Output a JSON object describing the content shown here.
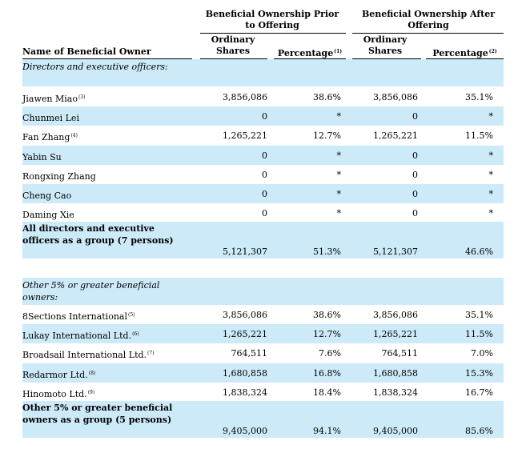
{
  "header": {
    "group_prior": "Beneficial Ownership Prior to Offering",
    "group_after": "Beneficial Ownership After Offering",
    "col_name": "Name of Beneficial Owner",
    "col_shares": "Ordinary Shares",
    "col_pct": "Percentage",
    "pct_prior_note": "(1)",
    "pct_after_note": "(2)"
  },
  "sections": {
    "directors": "Directors and executive officers:",
    "others": "Other 5% or greater beneficial owners:"
  },
  "directors": [
    {
      "name": "Jiawen Miao",
      "note": "(3)",
      "shares_prior": "3,856,086",
      "pct_prior": "38.6%",
      "shares_after": "3,856,086",
      "pct_after": "35.1%"
    },
    {
      "name": "Chunmei Lei",
      "note": "",
      "shares_prior": "0",
      "pct_prior": "*",
      "shares_after": "0",
      "pct_after": "*"
    },
    {
      "name": "Fan Zhang",
      "note": "(4)",
      "shares_prior": "1,265,221",
      "pct_prior": "12.7%",
      "shares_after": "1,265,221",
      "pct_after": "11.5%"
    },
    {
      "name": "Yabin Su",
      "note": "",
      "shares_prior": "0",
      "pct_prior": "*",
      "shares_after": "0",
      "pct_after": "*"
    },
    {
      "name": "Rongxing Zhang",
      "note": "",
      "shares_prior": "0",
      "pct_prior": "*",
      "shares_after": "0",
      "pct_after": "*"
    },
    {
      "name": "Cheng Cao",
      "note": "",
      "shares_prior": "0",
      "pct_prior": "*",
      "shares_after": "0",
      "pct_after": "*"
    },
    {
      "name": "Daming Xie",
      "note": "",
      "shares_prior": "0",
      "pct_prior": "*",
      "shares_after": "0",
      "pct_after": "*"
    }
  ],
  "directors_total": {
    "name": "All directors and executive officers as a group (7 persons)",
    "shares_prior": "5,121,307",
    "pct_prior": "51.3%",
    "shares_after": "5,121,307",
    "pct_after": "46.6%"
  },
  "others": [
    {
      "name": "8Sections International",
      "note": "(5)",
      "shares_prior": "3,856,086",
      "pct_prior": "38.6%",
      "shares_after": "3,856,086",
      "pct_after": "35.1%"
    },
    {
      "name": "Lukay International Ltd.",
      "note": "(6)",
      "shares_prior": "1,265,221",
      "pct_prior": "12.7%",
      "shares_after": "1,265,221",
      "pct_after": "11.5%"
    },
    {
      "name": "Broadsail International Ltd.",
      "note": "(7)",
      "shares_prior": "764,511",
      "pct_prior": "7.6%",
      "shares_after": "764,511",
      "pct_after": "7.0%"
    },
    {
      "name": "Redarmor Ltd.",
      "note": "(8)",
      "shares_prior": "1,680,858",
      "pct_prior": "16.8%",
      "shares_after": "1,680,858",
      "pct_after": "15.3%"
    },
    {
      "name": "Hinomoto Ltd.",
      "note": "(9)",
      "shares_prior": "1,838,324",
      "pct_prior": "18.4%",
      "shares_after": "1,838,324",
      "pct_after": "16.7%"
    }
  ],
  "others_total": {
    "name": "Other 5% or greater beneficial owners as a group (5 persons)",
    "shares_prior": "9,405,000",
    "pct_prior": "94.1%",
    "shares_after": "9,405,000",
    "pct_after": "85.6%"
  }
}
